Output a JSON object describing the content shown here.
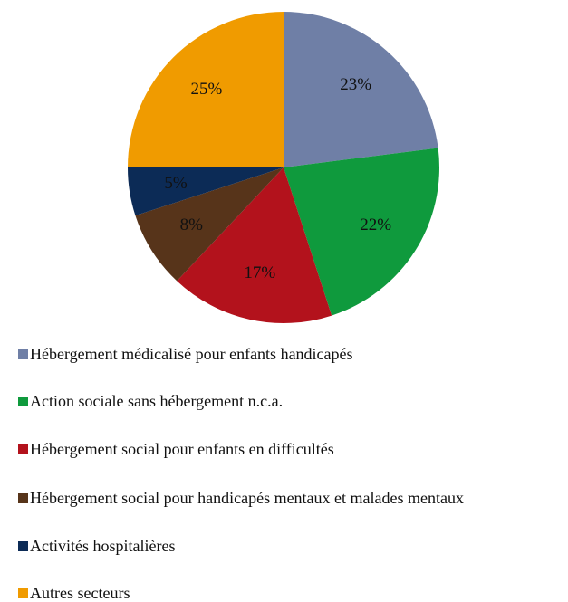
{
  "chart_data": {
    "type": "pie",
    "categories": [
      "Hébergement médicalisé pour enfants handicapés",
      "Action sociale sans hébergement n.c.a.",
      "Hébergement social pour enfants en difficultés",
      "Hébergement social pour handicapés mentaux et malades mentaux",
      "Activités hospitalières",
      "Autres secteurs"
    ],
    "values": [
      23,
      22,
      17,
      8,
      5,
      25
    ],
    "value_labels": [
      "23%",
      "22%",
      "17%",
      "8%",
      "5%",
      "25%"
    ],
    "colors": [
      "#6f7fa6",
      "#0f9a3d",
      "#b3121c",
      "#57341a",
      "#0c2b56",
      "#f09b00"
    ]
  }
}
